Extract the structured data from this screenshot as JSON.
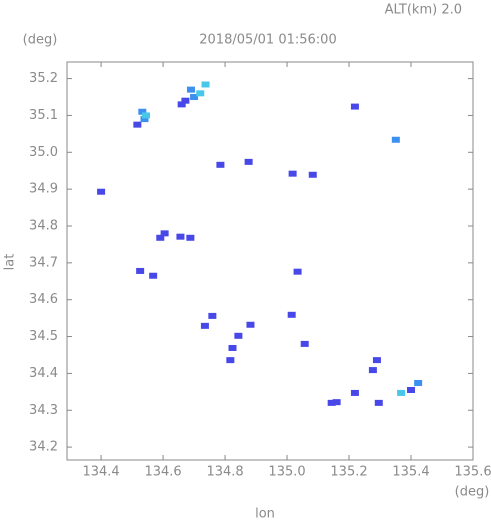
{
  "chart_data": {
    "type": "scatter",
    "title": "2018/05/01 01:56:00",
    "subtitle": "ALT(km) 2.0",
    "y_unit": "(deg)",
    "x_unit": "(deg)",
    "xlabel": "lon",
    "ylabel": "lat",
    "xlim": [
      134.29,
      135.6
    ],
    "ylim": [
      34.165,
      35.245
    ],
    "xticks": [
      134.4,
      134.6,
      134.8,
      {
        "value": 135,
        "label": "135.0"
      },
      135.2,
      135.4,
      135.6
    ],
    "yticks": [
      34.2,
      34.3,
      34.4,
      34.5,
      34.6,
      34.7,
      34.8,
      34.9,
      {
        "value": 35,
        "label": "35.0"
      },
      35.1,
      35.2
    ],
    "series": [
      {
        "color": "#4848e8",
        "x": [
          134.517,
          134.4,
          134.785,
          134.876,
          135.018,
          135.083,
          134.591,
          134.605,
          134.656,
          134.688,
          134.526,
          134.568,
          135.034,
          134.759,
          134.735,
          134.843,
          134.882,
          134.824,
          134.817,
          135.015,
          135.057,
          135.29,
          135.277,
          135.219,
          135.16,
          135.144,
          135.296,
          135.219,
          134.672,
          134.66,
          135.4
        ],
        "values": [
          35.075,
          34.893,
          34.966,
          34.974,
          34.942,
          34.939,
          34.768,
          34.78,
          34.771,
          34.768,
          34.678,
          34.665,
          34.676,
          34.556,
          34.529,
          34.502,
          34.532,
          34.469,
          34.436,
          34.559,
          34.48,
          34.436,
          34.409,
          34.347,
          34.322,
          34.32,
          34.32,
          35.124,
          35.14,
          35.13,
          34.355
        ]
      },
      {
        "color": "#3c90f0",
        "x": [
          134.533,
          134.69,
          134.7,
          135.351,
          135.423,
          134.54
        ],
        "values": [
          35.11,
          35.17,
          35.15,
          35.034,
          34.374,
          35.09
        ]
      },
      {
        "color": "#48c8e8",
        "x": [
          134.737,
          134.72,
          135.368,
          134.545
        ],
        "values": [
          35.184,
          35.16,
          34.347,
          35.1
        ]
      }
    ]
  }
}
